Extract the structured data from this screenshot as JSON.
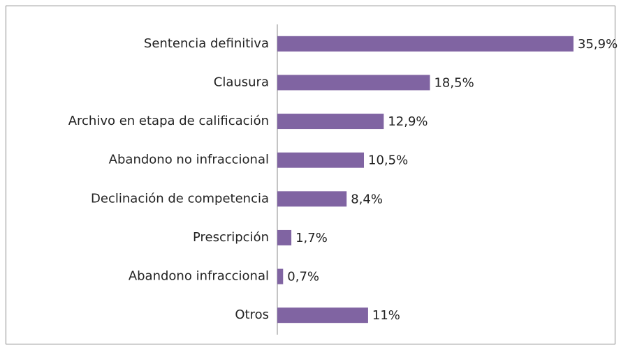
{
  "chart_data": {
    "type": "bar",
    "orientation": "horizontal",
    "categories": [
      "Sentencia definitiva",
      "Clausura",
      "Archivo en etapa de calificación",
      "Abandono no infraccional",
      "Declinación de competencia",
      "Prescripción",
      "Abandono infraccional",
      "Otros"
    ],
    "values": [
      35.9,
      18.5,
      12.9,
      10.5,
      8.4,
      1.7,
      0.7,
      11
    ],
    "value_labels": [
      "35,9%",
      "18,5%",
      "12,9%",
      "10,5%",
      "8,4%",
      "1,7%",
      "0,7%",
      "11%"
    ],
    "color": "#8064a2"
  }
}
